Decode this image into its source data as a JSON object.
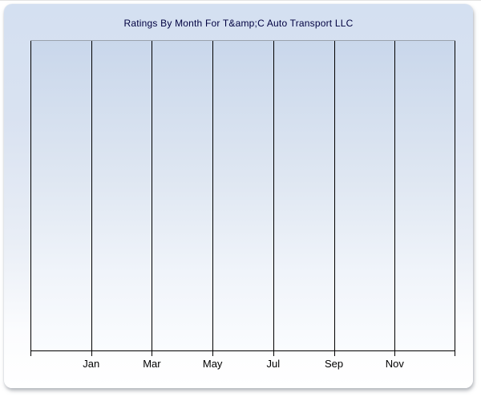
{
  "page": {
    "background_color": "#ffffff"
  },
  "panel": {
    "title": "Ratings By Month For T&amp;C Auto Transport LLC",
    "title_color": "#000040"
  },
  "chart_data": {
    "type": "line",
    "title": "Ratings By Month For T&amp;C Auto Transport LLC",
    "xlabel": "",
    "ylabel": "",
    "x_tick_labels": [
      "Jan",
      "Mar",
      "May",
      "Jul",
      "Sep",
      "Nov"
    ],
    "gridline_count": 8,
    "grid": "vertical-only",
    "legend": null,
    "series": [],
    "values": [],
    "note": "Plot area is empty - no data points, bars or lines are rendered; no y-axis tick labels are shown",
    "colors": {
      "gridline": "#000000",
      "axis": "#000000",
      "plot_top_border": "#9aa2ac",
      "plot_gradient_top": "#c9d7eb",
      "plot_gradient_bottom": "#fafcfe",
      "panel_gradient_top": "#d4e0f1",
      "panel_gradient_bottom": "#ffffff",
      "title": "#000040",
      "tick_label": "#000000"
    }
  }
}
